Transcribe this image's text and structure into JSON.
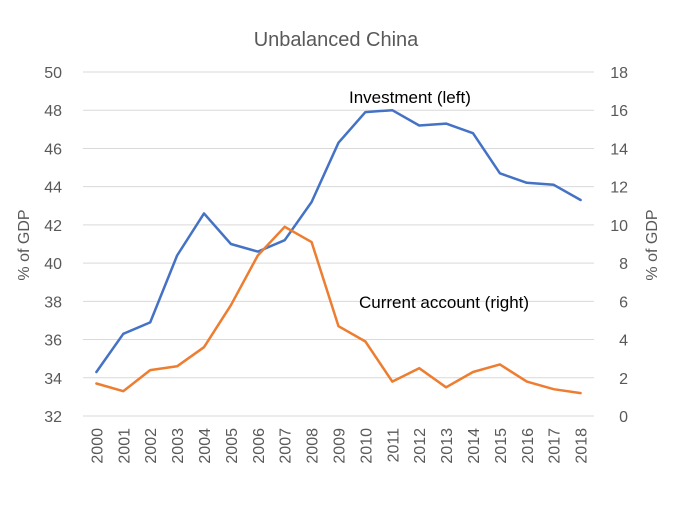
{
  "chart_data": {
    "type": "line",
    "title": "Unbalanced China",
    "x": [
      "2000",
      "2001",
      "2002",
      "2003",
      "2004",
      "2005",
      "2006",
      "2007",
      "2008",
      "2009",
      "2010",
      "2011",
      "2012",
      "2013",
      "2014",
      "2015",
      "2016",
      "2017",
      "2018"
    ],
    "y_left": {
      "label": "% of GDP",
      "range": [
        32,
        50
      ],
      "ticks": [
        "32",
        "34",
        "36",
        "38",
        "40",
        "42",
        "44",
        "46",
        "48",
        "50"
      ]
    },
    "y_right": {
      "label": "% of GDP",
      "range": [
        0,
        18
      ],
      "ticks": [
        "0",
        "2",
        "4",
        "6",
        "8",
        "10",
        "12",
        "14",
        "16",
        "18"
      ]
    },
    "grid": true,
    "series": [
      {
        "name": "Investment (left)",
        "axis": "left",
        "color": "#4472c4",
        "values": [
          34.3,
          36.3,
          36.9,
          40.4,
          42.6,
          41.0,
          40.6,
          41.2,
          43.2,
          46.3,
          47.9,
          48.0,
          47.2,
          47.3,
          46.8,
          44.7,
          44.2,
          44.1,
          43.3
        ]
      },
      {
        "name": "Current account (right)",
        "axis": "right",
        "color": "#ed7d31",
        "values": [
          1.7,
          1.3,
          2.4,
          2.6,
          3.6,
          5.8,
          8.4,
          9.9,
          9.1,
          4.7,
          3.9,
          1.8,
          2.5,
          1.5,
          2.3,
          2.7,
          1.8,
          1.4,
          1.2
        ]
      }
    ]
  }
}
